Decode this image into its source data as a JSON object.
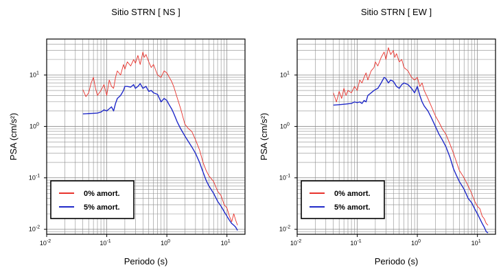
{
  "figure": {
    "background": "#ffffff",
    "grid_color": "#8c8c8c",
    "grid": true,
    "legend_placement": "bottom-left"
  },
  "chart_data": [
    {
      "type": "line",
      "title": "Sitio STRN [ NS ]",
      "xlabel": "Periodo (s)",
      "ylabel": "PSA (cm/s²)",
      "xscale": "log",
      "yscale": "log",
      "xlim": [
        0.01,
        20
      ],
      "ylim": [
        0.008,
        50
      ],
      "x_ticks": [
        {
          "base": "10",
          "exp": "-2"
        },
        {
          "base": "10",
          "exp": "-1"
        },
        {
          "base": "10",
          "exp": "0"
        },
        {
          "base": "10",
          "exp": "1"
        }
      ],
      "y_ticks": [
        {
          "base": "10",
          "exp": "-2"
        },
        {
          "base": "10",
          "exp": "-1"
        },
        {
          "base": "10",
          "exp": "0"
        },
        {
          "base": "10",
          "exp": "1"
        }
      ],
      "series": [
        {
          "name": "0% amort.",
          "color": "#e8302a",
          "x": [
            0.04,
            0.045,
            0.05,
            0.055,
            0.06,
            0.065,
            0.07,
            0.08,
            0.09,
            0.1,
            0.11,
            0.12,
            0.13,
            0.14,
            0.15,
            0.17,
            0.19,
            0.2,
            0.22,
            0.25,
            0.28,
            0.3,
            0.33,
            0.36,
            0.4,
            0.42,
            0.45,
            0.5,
            0.55,
            0.6,
            0.7,
            0.8,
            0.9,
            1.0,
            1.1,
            1.2,
            1.3,
            1.5,
            1.7,
            2.0,
            2.3,
            2.6,
            3.0,
            3.5,
            4.0,
            4.5,
            5.0,
            6.0,
            7.0,
            8.0,
            9.0,
            10.0,
            11.0,
            12.0,
            13.0,
            14.0,
            15.0
          ],
          "values": [
            5.2,
            3.8,
            4.5,
            7.0,
            9.0,
            5.5,
            4.0,
            5.0,
            6.5,
            4.0,
            8.0,
            6.0,
            5.5,
            9.0,
            12.0,
            10.0,
            16.0,
            13.0,
            18.0,
            15.0,
            20.0,
            17.0,
            24.0,
            16.0,
            28.0,
            22.0,
            25.0,
            18.0,
            14.0,
            16.0,
            10.0,
            9.0,
            12.0,
            11.0,
            9.0,
            7.5,
            6.0,
            3.5,
            2.2,
            1.1,
            0.9,
            0.8,
            0.55,
            0.35,
            0.2,
            0.14,
            0.11,
            0.085,
            0.055,
            0.045,
            0.03,
            0.026,
            0.018,
            0.014,
            0.02,
            0.015,
            0.012
          ]
        },
        {
          "name": "5% amort.",
          "color": "#1e28c8",
          "x": [
            0.04,
            0.05,
            0.06,
            0.07,
            0.08,
            0.09,
            0.1,
            0.11,
            0.12,
            0.13,
            0.14,
            0.15,
            0.17,
            0.19,
            0.2,
            0.22,
            0.25,
            0.28,
            0.3,
            0.33,
            0.36,
            0.4,
            0.45,
            0.5,
            0.55,
            0.6,
            0.7,
            0.8,
            0.9,
            1.0,
            1.1,
            1.2,
            1.3,
            1.5,
            1.7,
            2.0,
            2.3,
            2.6,
            3.0,
            3.5,
            4.0,
            4.5,
            5.0,
            6.0,
            7.0,
            8.0,
            9.0,
            10.0,
            11.0,
            12.0,
            13.0,
            14.0,
            15.0
          ],
          "values": [
            1.75,
            1.78,
            1.8,
            1.82,
            1.9,
            2.1,
            2.0,
            2.2,
            2.4,
            2.0,
            2.8,
            3.5,
            4.0,
            5.0,
            6.0,
            6.0,
            5.8,
            6.5,
            5.5,
            6.0,
            6.8,
            5.5,
            6.0,
            4.8,
            5.0,
            4.5,
            4.2,
            3.0,
            3.5,
            3.2,
            2.6,
            2.2,
            1.8,
            1.2,
            0.9,
            0.65,
            0.5,
            0.4,
            0.3,
            0.2,
            0.13,
            0.09,
            0.07,
            0.05,
            0.035,
            0.028,
            0.022,
            0.018,
            0.015,
            0.013,
            0.012,
            0.011,
            0.0095
          ]
        }
      ]
    },
    {
      "type": "line",
      "title": "Sitio STRN [ EW ]",
      "xlabel": "Periodo (s)",
      "ylabel": "PSA (cm/s²)",
      "xscale": "log",
      "yscale": "log",
      "xlim": [
        0.01,
        20
      ],
      "ylim": [
        0.008,
        50
      ],
      "x_ticks": [
        {
          "base": "10",
          "exp": "-2"
        },
        {
          "base": "10",
          "exp": "-1"
        },
        {
          "base": "10",
          "exp": "0"
        },
        {
          "base": "10",
          "exp": "1"
        }
      ],
      "y_ticks": [
        {
          "base": "10",
          "exp": "-2"
        },
        {
          "base": "10",
          "exp": "-1"
        },
        {
          "base": "10",
          "exp": "0"
        },
        {
          "base": "10",
          "exp": "1"
        }
      ],
      "series": [
        {
          "name": "0% amort.",
          "color": "#e8302a",
          "x": [
            0.04,
            0.045,
            0.05,
            0.055,
            0.06,
            0.065,
            0.07,
            0.08,
            0.09,
            0.1,
            0.11,
            0.12,
            0.13,
            0.14,
            0.15,
            0.17,
            0.19,
            0.2,
            0.22,
            0.25,
            0.28,
            0.3,
            0.33,
            0.36,
            0.4,
            0.42,
            0.45,
            0.5,
            0.55,
            0.6,
            0.7,
            0.8,
            0.9,
            1.0,
            1.1,
            1.2,
            1.3,
            1.5,
            1.7,
            2.0,
            2.3,
            2.6,
            3.0,
            3.5,
            4.0,
            4.5,
            5.0,
            6.0,
            7.0,
            8.0,
            9.0,
            10.0,
            11.0,
            12.0,
            13.0,
            14.0,
            15.0
          ],
          "values": [
            4.5,
            3.0,
            4.8,
            3.5,
            5.5,
            4.0,
            5.0,
            4.5,
            6.0,
            5.0,
            8.0,
            7.0,
            9.0,
            11.0,
            8.0,
            12.0,
            14.0,
            18.0,
            15.0,
            22.0,
            28.0,
            20.0,
            34.0,
            25.0,
            30.0,
            22.0,
            26.0,
            18.0,
            20.0,
            14.0,
            12.0,
            9.0,
            8.0,
            9.0,
            6.0,
            7.0,
            5.0,
            3.5,
            2.5,
            1.6,
            1.2,
            0.9,
            0.7,
            0.45,
            0.3,
            0.2,
            0.14,
            0.1,
            0.07,
            0.05,
            0.035,
            0.028,
            0.025,
            0.018,
            0.016,
            0.013,
            0.012
          ]
        },
        {
          "name": "5% amort.",
          "color": "#1e28c8",
          "x": [
            0.04,
            0.05,
            0.06,
            0.07,
            0.08,
            0.09,
            0.1,
            0.11,
            0.12,
            0.13,
            0.14,
            0.15,
            0.17,
            0.19,
            0.2,
            0.22,
            0.25,
            0.28,
            0.3,
            0.33,
            0.36,
            0.4,
            0.45,
            0.5,
            0.55,
            0.6,
            0.7,
            0.8,
            0.9,
            1.0,
            1.1,
            1.2,
            1.3,
            1.5,
            1.7,
            2.0,
            2.3,
            2.6,
            3.0,
            3.5,
            4.0,
            4.5,
            5.0,
            6.0,
            7.0,
            8.0,
            9.0,
            10.0,
            11.0,
            12.0,
            13.0,
            14.0,
            15.0
          ],
          "values": [
            2.6,
            2.65,
            2.7,
            2.75,
            2.8,
            3.0,
            2.9,
            3.0,
            2.8,
            3.2,
            3.0,
            4.0,
            4.5,
            5.0,
            5.2,
            5.5,
            7.0,
            9.0,
            8.5,
            7.0,
            8.0,
            7.5,
            6.0,
            5.5,
            6.5,
            7.0,
            6.5,
            5.5,
            4.5,
            6.0,
            4.0,
            3.0,
            2.5,
            2.0,
            1.5,
            1.0,
            0.7,
            0.55,
            0.4,
            0.25,
            0.15,
            0.11,
            0.085,
            0.06,
            0.04,
            0.033,
            0.025,
            0.02,
            0.016,
            0.013,
            0.011,
            0.009,
            0.0085
          ]
        }
      ]
    }
  ]
}
